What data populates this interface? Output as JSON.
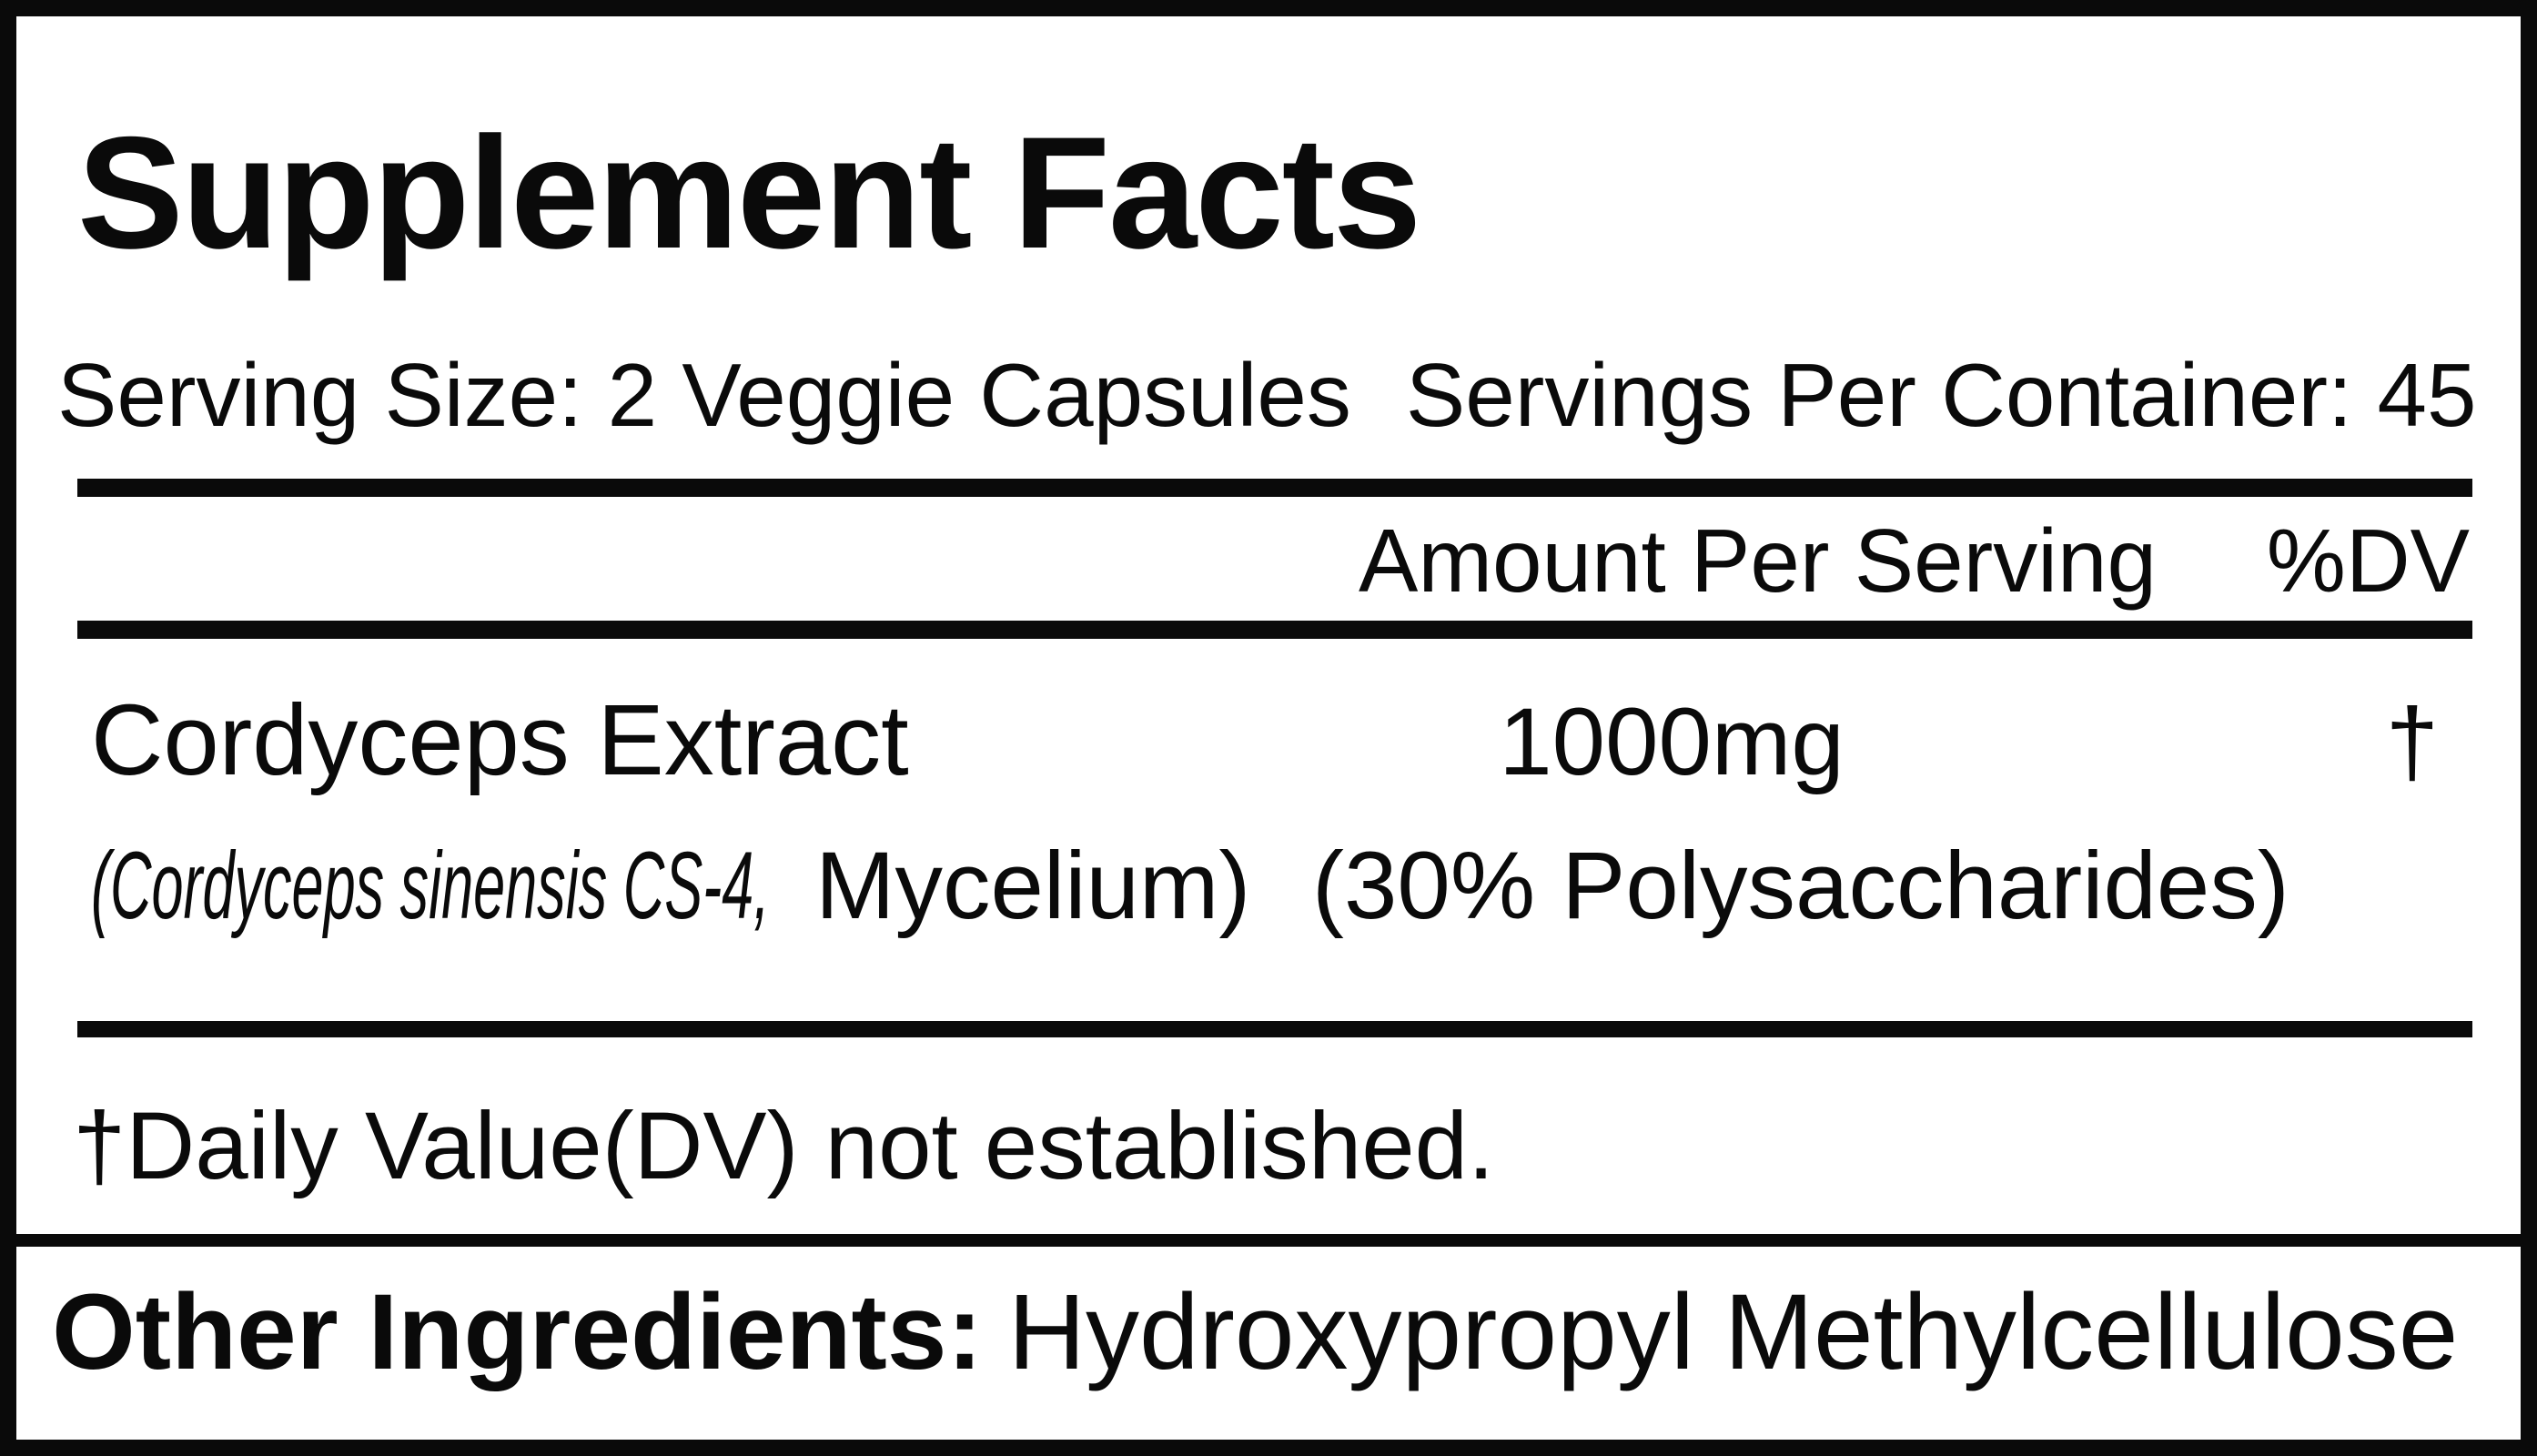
{
  "label": {
    "title": "Supplement Facts",
    "serving_size": "Serving Size: 2 Veggie Capsules",
    "servings_per_container": "Servings Per Container: 45",
    "columns": {
      "amount": "Amount Per Serving",
      "dv": "%DV"
    },
    "ingredients": [
      {
        "name": "Cordyceps Extract",
        "detail_italic": "(Cordyceps sinensis CS-4,",
        "detail_regular": "Mycelium)",
        "detail_extra": "(30% Polysaccharides)",
        "amount": "1000mg",
        "dv": "†"
      }
    ],
    "footnote": "†Daily Value(DV) not established.",
    "other_ingredients_label": "Other Ingredients:",
    "other_ingredients_value": "Hydroxypropyl Methylcellulose",
    "colors": {
      "ink": "#0a0a0a",
      "background": "#ffffff"
    }
  }
}
